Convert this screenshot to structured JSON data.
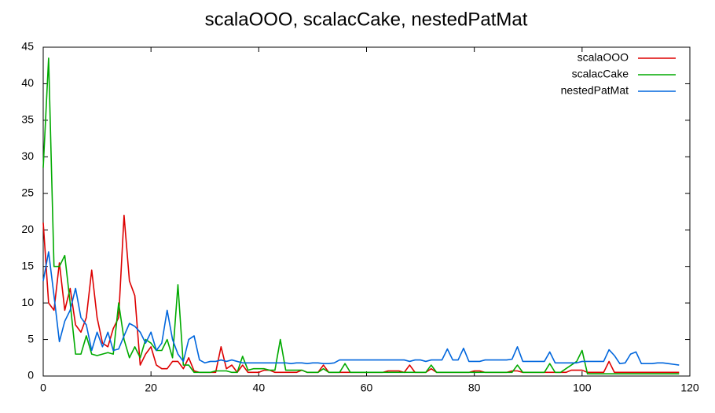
{
  "chart_data": {
    "type": "line",
    "title": "scalaOOO, scalacCake, nestedPatMat",
    "x": [
      0,
      1,
      2,
      3,
      4,
      5,
      6,
      7,
      8,
      9,
      10,
      11,
      12,
      13,
      14,
      15,
      16,
      17,
      18,
      19,
      20,
      21,
      22,
      23,
      24,
      25,
      26,
      27,
      28,
      29,
      30,
      31,
      32,
      33,
      34,
      35,
      36,
      37,
      38,
      39,
      40,
      41,
      42,
      43,
      44,
      45,
      46,
      47,
      48,
      49,
      50,
      51,
      52,
      53,
      54,
      55,
      56,
      57,
      58,
      59,
      60,
      61,
      62,
      63,
      64,
      65,
      66,
      67,
      68,
      69,
      70,
      71,
      72,
      73,
      74,
      75,
      76,
      77,
      78,
      79,
      80,
      81,
      82,
      83,
      84,
      85,
      86,
      87,
      88,
      89,
      90,
      91,
      92,
      93,
      94,
      95,
      96,
      97,
      98,
      99,
      100,
      101,
      102,
      103,
      104,
      105,
      106,
      107,
      108,
      109,
      110,
      111,
      112,
      113,
      114,
      115,
      116,
      117,
      118
    ],
    "series": [
      {
        "name": "scalaOOO",
        "color": "#dd0000",
        "values": [
          21,
          10,
          9,
          15.5,
          9,
          12,
          7,
          6,
          8,
          14.5,
          8,
          4.5,
          4,
          6.5,
          8,
          22,
          13,
          11,
          1.5,
          3,
          4,
          1.5,
          1,
          1,
          2,
          2,
          1,
          2.5,
          0.7,
          0.5,
          0.5,
          0.5,
          0.5,
          4,
          1,
          1.5,
          0.5,
          1.5,
          0.5,
          0.5,
          0.5,
          0.8,
          0.8,
          0.5,
          0.5,
          0.5,
          0.5,
          0.5,
          0.8,
          0.5,
          0.5,
          0.5,
          1.5,
          0.5,
          0.5,
          0.5,
          0.5,
          0.5,
          0.5,
          0.5,
          0.5,
          0.5,
          0.5,
          0.5,
          0.7,
          0.7,
          0.7,
          0.5,
          1.5,
          0.5,
          0.5,
          0.5,
          1,
          0.5,
          0.5,
          0.5,
          0.5,
          0.5,
          0.5,
          0.5,
          0.7,
          0.7,
          0.5,
          0.5,
          0.5,
          0.5,
          0.5,
          0.7,
          0.7,
          0.5,
          0.5,
          0.5,
          0.5,
          0.5,
          0.5,
          0.5,
          0.5,
          0.5,
          0.8,
          0.8,
          0.8,
          0.5,
          0.5,
          0.5,
          0.5,
          2,
          0.5,
          0.5,
          0.5,
          0.5,
          0.5,
          0.5,
          0.5,
          0.5,
          0.5,
          0.5,
          0.5,
          0.5,
          0.5
        ]
      },
      {
        "name": "scalacCake",
        "color": "#00aa00",
        "values": [
          28.5,
          43.5,
          15,
          15,
          16.5,
          10,
          3,
          3,
          5.5,
          3,
          2.8,
          3,
          3.2,
          3,
          10,
          5,
          2.5,
          4,
          2.5,
          5,
          4.5,
          3.5,
          3.5,
          5,
          2.5,
          12.5,
          1.5,
          1.5,
          0.5,
          0.5,
          0.5,
          0.5,
          0.7,
          0.7,
          0.7,
          0.5,
          0.5,
          2.7,
          0.8,
          1,
          1,
          1,
          0.8,
          0.8,
          5,
          0.8,
          0.8,
          0.8,
          0.8,
          0.5,
          0.5,
          0.5,
          1,
          0.5,
          0.5,
          0.5,
          1.7,
          0.5,
          0.5,
          0.5,
          0.5,
          0.5,
          0.5,
          0.5,
          0.5,
          0.5,
          0.5,
          0.5,
          0.5,
          0.5,
          0.5,
          0.5,
          1.5,
          0.5,
          0.5,
          0.5,
          0.5,
          0.5,
          0.5,
          0.5,
          0.5,
          0.5,
          0.5,
          0.5,
          0.5,
          0.5,
          0.5,
          0.5,
          1.5,
          0.5,
          0.5,
          0.5,
          0.5,
          0.5,
          1.7,
          0.5,
          0.5,
          1,
          1.5,
          2,
          3.5,
          0.3,
          0.3,
          0.3,
          0.3,
          0.3,
          0.3,
          0.3,
          0.3,
          0.3,
          0.3,
          0.3,
          0.3,
          0.3,
          0.3,
          0.3,
          0.3,
          0.3,
          0.3
        ]
      },
      {
        "name": "nestedPatMat",
        "color": "#0066dd",
        "values": [
          13,
          17,
          11,
          4.7,
          7.5,
          9,
          12,
          8,
          7,
          3.5,
          6,
          4,
          6,
          3.5,
          3.7,
          5.5,
          7.2,
          6.8,
          6,
          4.5,
          6,
          3.5,
          4.5,
          9,
          5,
          3,
          2,
          5,
          5.5,
          2.2,
          1.8,
          2,
          2,
          2.2,
          2,
          2.2,
          2,
          1.8,
          1.8,
          1.8,
          1.8,
          1.8,
          1.8,
          1.8,
          1.8,
          1.8,
          1.7,
          1.8,
          1.8,
          1.7,
          1.8,
          1.8,
          1.7,
          1.7,
          1.8,
          2.2,
          2.2,
          2.2,
          2.2,
          2.2,
          2.2,
          2.2,
          2.2,
          2.2,
          2.2,
          2.2,
          2.2,
          2.2,
          2,
          2.2,
          2.2,
          2,
          2.2,
          2.2,
          2.2,
          3.7,
          2.2,
          2.2,
          3.8,
          2,
          2,
          2,
          2.2,
          2.2,
          2.2,
          2.2,
          2.2,
          2.3,
          4,
          2,
          2,
          2,
          2,
          2,
          3.3,
          1.8,
          1.8,
          1.8,
          1.8,
          1.8,
          2,
          2,
          2,
          2,
          2,
          3.6,
          2.8,
          1.7,
          1.8,
          3,
          3.3,
          1.7,
          1.7,
          1.7,
          1.8,
          1.8,
          1.7,
          1.6,
          1.5
        ]
      }
    ],
    "xlim": [
      0,
      120
    ],
    "xticks": [
      0,
      20,
      40,
      60,
      80,
      100,
      120
    ],
    "ylim": [
      0,
      45
    ],
    "yticks": [
      0,
      5,
      10,
      15,
      20,
      25,
      30,
      35,
      40,
      45
    ],
    "grid": false,
    "legend": "top-right"
  }
}
